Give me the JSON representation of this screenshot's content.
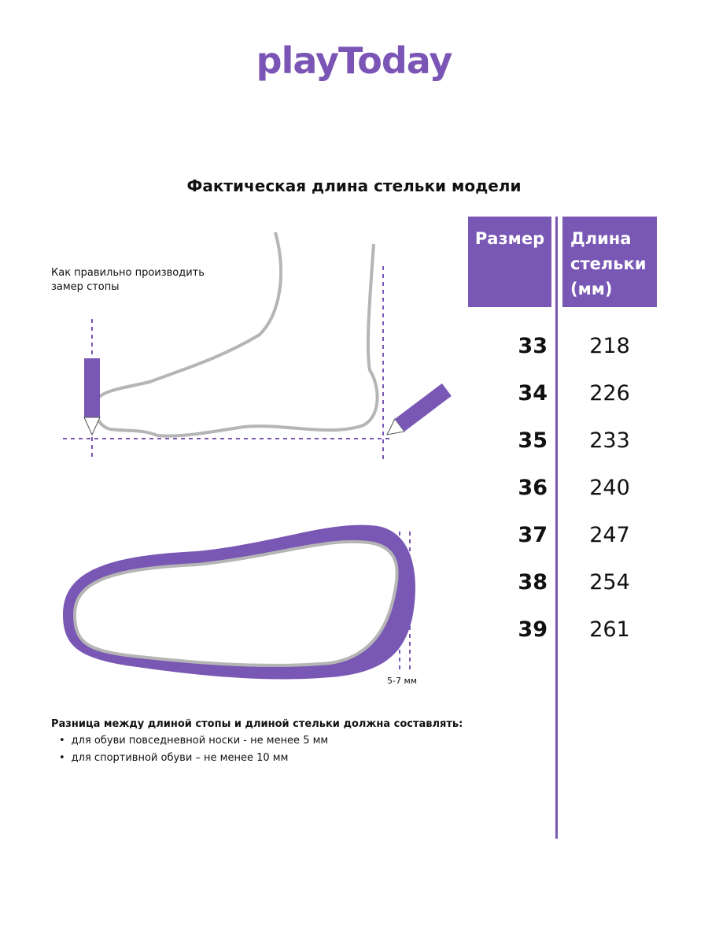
{
  "logo": "playToday",
  "title": "Фактическая длина стельки модели",
  "measure_hint": "Как правильно производить замер стопы",
  "gap_label": "5-7 мм",
  "table": {
    "headers": [
      "Размер",
      "Длина стельки (мм)"
    ],
    "rows": [
      [
        33,
        218
      ],
      [
        34,
        226
      ],
      [
        35,
        233
      ],
      [
        36,
        240
      ],
      [
        37,
        247
      ],
      [
        38,
        254
      ],
      [
        39,
        261
      ]
    ]
  },
  "note": {
    "title": "Разница между длиной стопы и длиной стельки должна составлять:",
    "items": [
      "для обуви повседневной носки -  не менее 5 мм",
      "для спортивной обуви – не менее 10 мм"
    ]
  }
}
